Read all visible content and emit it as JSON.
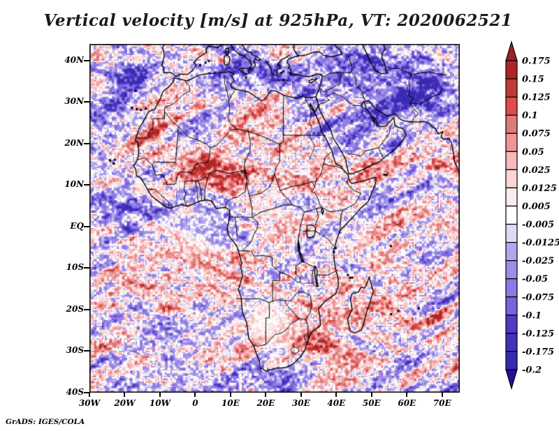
{
  "title": "Vertical velocity [m/s] at 925hPa, VT: 2020062521",
  "credit": "GrADS: IGES/COLA",
  "chart_data": {
    "type": "heatmap",
    "title": "Vertical velocity [m/s] at 925hPa, VT: 2020062521",
    "variable": "Vertical velocity",
    "units": "m/s",
    "pressure_level": "925hPa",
    "valid_time": "2020062521",
    "region": {
      "lon_range": [
        -30,
        75
      ],
      "lat_range": [
        -40,
        44
      ]
    },
    "grid": "off",
    "legend_position": "right",
    "x_ticks": [
      {
        "value": -30,
        "label": "30W"
      },
      {
        "value": -20,
        "label": "20W"
      },
      {
        "value": -10,
        "label": "10W"
      },
      {
        "value": 0,
        "label": "0"
      },
      {
        "value": 10,
        "label": "10E"
      },
      {
        "value": 20,
        "label": "20E"
      },
      {
        "value": 30,
        "label": "30E"
      },
      {
        "value": 40,
        "label": "40E"
      },
      {
        "value": 50,
        "label": "50E"
      },
      {
        "value": 60,
        "label": "60E"
      },
      {
        "value": 70,
        "label": "70E"
      }
    ],
    "y_ticks": [
      {
        "value": 40,
        "label": "40N"
      },
      {
        "value": 30,
        "label": "30N"
      },
      {
        "value": 20,
        "label": "20N"
      },
      {
        "value": 10,
        "label": "10N"
      },
      {
        "value": 0,
        "label": "EQ"
      },
      {
        "value": -10,
        "label": "10S"
      },
      {
        "value": -20,
        "label": "20S"
      },
      {
        "value": -30,
        "label": "30S"
      },
      {
        "value": -40,
        "label": "40S"
      }
    ],
    "colorbar": {
      "orientation": "vertical",
      "boundary_labels": [
        "0.175",
        "0.15",
        "0.125",
        "0.1",
        "0.075",
        "0.05",
        "0.025",
        "0.0125",
        "0.005",
        "-0.005",
        "-0.0125",
        "-0.025",
        "-0.05",
        "-0.075",
        "-0.1",
        "-0.125",
        "-0.175",
        "-0.2"
      ],
      "boundary_values": [
        0.175,
        0.15,
        0.125,
        0.1,
        0.075,
        0.05,
        0.025,
        0.0125,
        0.005,
        -0.005,
        -0.0125,
        -0.025,
        -0.05,
        -0.075,
        -0.1,
        -0.125,
        -0.175,
        -0.2
      ],
      "segment_colors_top_to_bottom": [
        "#AC2626",
        "#C13A3A",
        "#E14B4B",
        "#DE7A7A",
        "#EE9595",
        "#F6BABA",
        "#FAD5D5",
        "#FDECEC",
        "#FFFFFF",
        "#DBDBF4",
        "#B4A6EC",
        "#9D8CE8",
        "#8C7AE2",
        "#7B62DA",
        "#4E3BC8",
        "#4231BE",
        "#392BB0"
      ],
      "above_max_color": "#A12020",
      "below_min_color": "#2A0D9E"
    },
    "map_overlay": "Africa, Middle East and Mediterranean coastlines with country borders and great lakes",
    "field_appearance": "fine pixelated mottle of pale pink (upward) and pale blue-violet (downward) filaments over the whole domain"
  }
}
